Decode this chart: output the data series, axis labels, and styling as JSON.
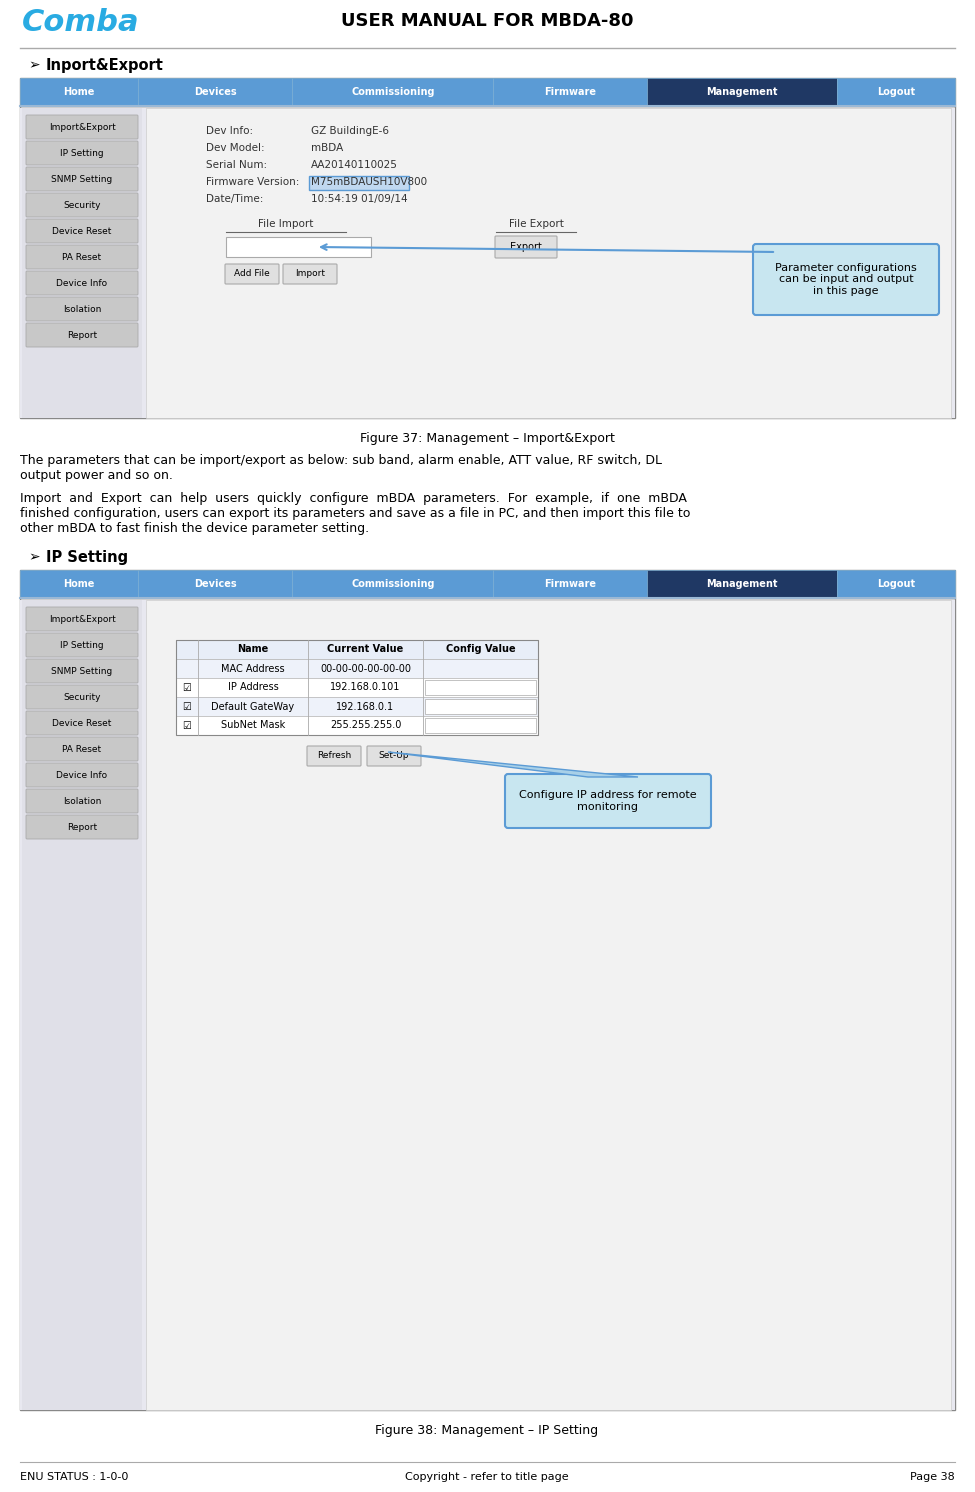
{
  "title": "USER MANUAL FOR MBDA-80",
  "comba_color": "#29ABE2",
  "page_bg": "#ffffff",
  "footer_left": "ENU STATUS : 1-0-0",
  "footer_center": "Copyright - refer to title page",
  "footer_right": "Page 38",
  "section1_title": "Inport&Export",
  "section1_fig_caption": "Figure 37: Management – Import&Export",
  "section1_body1": "The parameters that can be import/export as below: sub band, alarm enable, ATT value, RF switch, DL\noutput power and so on.",
  "section1_body2": "Import  and  Export  can  help  users  quickly  configure  mBDA  parameters.  For  example,  if  one  mBDA\nfinished configuration, users can export its parameters and save as a file in PC, and then import this file to\nother mBDA to fast finish the device parameter setting.",
  "section2_title": "IP Setting",
  "section2_fig_caption": "Figure 38: Management – IP Setting",
  "nav_tabs": [
    "Home",
    "Devices",
    "Commissioning",
    "Firmware",
    "Management",
    "Logout"
  ],
  "nav_active": 4,
  "nav_bg": "#5B9BD5",
  "nav_active_bg": "#1F3864",
  "sidebar_buttons": [
    "Import&Export",
    "IP Setting",
    "SNMP Setting",
    "Security",
    "Device Reset",
    "PA Reset",
    "Device Info",
    "Isolation",
    "Report"
  ],
  "callout_bg": "#C8E6F0",
  "callout_border": "#5B9BD5",
  "fig37_info": [
    [
      "Dev Info:",
      "GZ BuildingE-6"
    ],
    [
      "Dev Model:",
      "mBDA"
    ],
    [
      "Serial Num:",
      "AA20140110025"
    ],
    [
      "Firmware Version:",
      "M75mBDAUSH10V800"
    ],
    [
      "Date/Time:",
      "10:54:19 01/09/14"
    ]
  ],
  "ip_table_headers": [
    "",
    "Name",
    "Current Value",
    "Config Value"
  ],
  "ip_table_rows": [
    [
      "",
      "MAC Address",
      "00-00-00-00-00-00",
      ""
    ],
    [
      "☑",
      "IP Address",
      "192.168.0.101",
      ""
    ],
    [
      "☑",
      "Default GateWay",
      "192.168.0.1",
      ""
    ],
    [
      "☑",
      "SubNet Mask",
      "255.255.255.0",
      ""
    ]
  ]
}
